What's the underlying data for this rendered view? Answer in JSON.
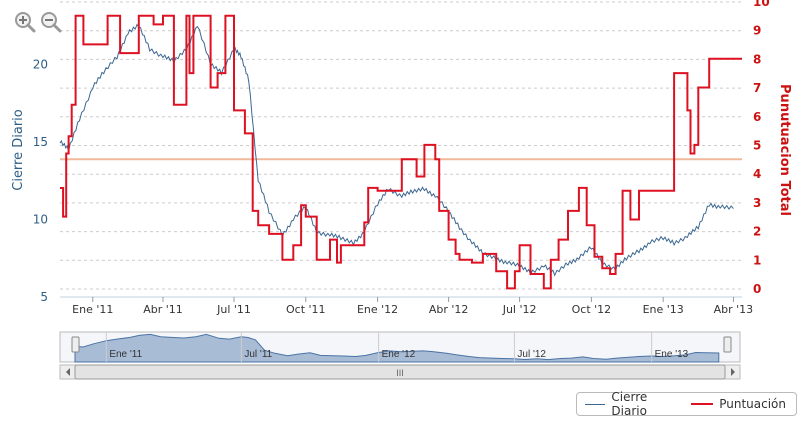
{
  "toolbar": {
    "zoom_in_icon": "zoom-in-icon",
    "zoom_out_icon": "zoom-out-icon"
  },
  "legend": {
    "cierre_label": "Cierre Diario",
    "puntuacion_label": "Puntuación"
  },
  "colors": {
    "cierre": "#3c6791",
    "puntuacion": "#dd1122",
    "reference": "#f0b99a",
    "navigator_fill": "#a9bcd6",
    "grid": "#cccccc"
  },
  "chart_data": {
    "type": "line",
    "title": "",
    "ylabel_left": "Cierre Diario",
    "ylabel_right": "Punutuacion Total",
    "x_ticks": [
      "Ene '11",
      "Abr '11",
      "Jul '11",
      "Oct '11",
      "Ene '12",
      "Abr '12",
      "Jul '12",
      "Oct '12",
      "Ene '13",
      "Abr '13"
    ],
    "x_tick_dates": [
      "2011-01-01",
      "2011-04-01",
      "2011-07-01",
      "2011-10-01",
      "2012-01-01",
      "2012-04-01",
      "2012-07-01",
      "2012-10-01",
      "2013-01-01",
      "2013-04-01"
    ],
    "x_range": [
      "2010-11-20",
      "2013-04-12"
    ],
    "y_left_ticks": [
      "5",
      "10",
      "15",
      "20"
    ],
    "y_left_range": [
      5,
      23.5
    ],
    "y_right_ticks": [
      "0",
      "1",
      "2",
      "3",
      "4",
      "5",
      "6",
      "7",
      "8",
      "9",
      "10"
    ],
    "y_right_range": [
      0,
      10
    ],
    "reference_line": {
      "axis": "right",
      "value": 4.8
    },
    "navigator_ticks": [
      "Ene '11",
      "Jul '11",
      "Ene '12",
      "Jul '12",
      "Ene '13"
    ],
    "navigator_thumb_label": "III",
    "series": [
      {
        "name": "Cierre Diario",
        "axis": "left",
        "x": [
          "2010-11-20",
          "2010-12-01",
          "2010-12-15",
          "2011-01-01",
          "2011-01-15",
          "2011-02-01",
          "2011-02-15",
          "2011-03-01",
          "2011-03-15",
          "2011-04-01",
          "2011-04-15",
          "2011-05-01",
          "2011-05-15",
          "2011-06-01",
          "2011-06-15",
          "2011-07-01",
          "2011-07-10",
          "2011-07-20",
          "2011-08-01",
          "2011-08-15",
          "2011-09-01",
          "2011-09-15",
          "2011-10-01",
          "2011-10-15",
          "2011-11-01",
          "2011-11-15",
          "2011-12-01",
          "2011-12-15",
          "2012-01-01",
          "2012-01-15",
          "2012-02-01",
          "2012-02-15",
          "2012-03-01",
          "2012-03-15",
          "2012-04-01",
          "2012-04-15",
          "2012-05-01",
          "2012-05-15",
          "2012-06-01",
          "2012-06-15",
          "2012-07-01",
          "2012-07-15",
          "2012-08-01",
          "2012-08-15",
          "2012-09-01",
          "2012-09-15",
          "2012-10-01",
          "2012-10-15",
          "2012-11-01",
          "2012-11-15",
          "2012-12-01",
          "2012-12-15",
          "2013-01-01",
          "2013-01-15",
          "2013-02-01",
          "2013-02-15",
          "2013-03-01",
          "2013-03-15",
          "2013-04-01"
        ],
        "values": [
          15,
          14.5,
          16.5,
          18.5,
          19.5,
          20.5,
          22,
          22.5,
          21,
          20.5,
          20.2,
          21,
          22.5,
          20,
          19.5,
          21,
          20.5,
          19,
          12.5,
          10.5,
          9,
          10,
          10.8,
          9.2,
          9,
          8.8,
          8.5,
          9.2,
          11,
          12,
          11.5,
          11.8,
          12,
          11.5,
          10.5,
          9.5,
          8.5,
          7.8,
          7.5,
          7.2,
          7,
          6.6,
          7,
          6.5,
          7.2,
          7.5,
          8.2,
          7.2,
          6.8,
          7.5,
          8,
          8.5,
          8.8,
          8.5,
          8.9,
          9.5,
          11,
          10.8,
          10.7
        ]
      },
      {
        "name": "Puntuación",
        "axis": "right",
        "x": [
          "2010-11-20",
          "2010-11-24",
          "2010-11-28",
          "2010-12-01",
          "2010-12-05",
          "2010-12-10",
          "2010-12-20",
          "2011-01-20",
          "2011-02-05",
          "2011-03-01",
          "2011-03-20",
          "2011-04-01",
          "2011-04-15",
          "2011-05-01",
          "2011-05-05",
          "2011-05-10",
          "2011-05-20",
          "2011-06-01",
          "2011-06-10",
          "2011-06-20",
          "2011-07-01",
          "2011-07-15",
          "2011-07-25",
          "2011-08-01",
          "2011-08-15",
          "2011-09-01",
          "2011-09-15",
          "2011-09-25",
          "2011-10-01",
          "2011-10-15",
          "2011-11-01",
          "2011-11-10",
          "2011-11-15",
          "2011-12-01",
          "2011-12-15",
          "2011-12-20",
          "2012-01-01",
          "2012-01-15",
          "2012-02-01",
          "2012-02-20",
          "2012-03-01",
          "2012-03-15",
          "2012-03-20",
          "2012-04-01",
          "2012-04-10",
          "2012-04-15",
          "2012-05-01",
          "2012-05-15",
          "2012-06-01",
          "2012-06-15",
          "2012-06-25",
          "2012-07-01",
          "2012-07-15",
          "2012-08-01",
          "2012-08-10",
          "2012-08-20",
          "2012-09-01",
          "2012-09-15",
          "2012-09-25",
          "2012-10-05",
          "2012-10-15",
          "2012-10-25",
          "2012-11-01",
          "2012-11-10",
          "2012-11-20",
          "2012-12-01",
          "2012-12-15",
          "2013-01-01",
          "2013-01-15",
          "2013-02-01",
          "2013-02-05",
          "2013-02-10",
          "2013-02-15",
          "2013-03-01",
          "2013-03-10",
          "2013-04-01"
        ],
        "values": [
          3.8,
          2.8,
          5,
          5.6,
          6.7,
          9.8,
          8.8,
          9.8,
          8.5,
          9.8,
          9.5,
          9.8,
          6.7,
          9.8,
          7.8,
          9.8,
          9.8,
          7.3,
          7.8,
          9.8,
          6.5,
          5.7,
          3,
          2.5,
          2.2,
          1.3,
          1.8,
          3.2,
          2.8,
          1.3,
          2,
          1.2,
          1.8,
          1.8,
          2.6,
          3.8,
          3.7,
          3.7,
          4.8,
          4.2,
          5.3,
          4.8,
          3,
          2,
          1.5,
          1.3,
          1.2,
          1.5,
          0.9,
          0.3,
          0.9,
          1.8,
          0.8,
          0.3,
          1.3,
          2,
          3,
          3.8,
          2.5,
          1.4,
          1,
          0.8,
          1.5,
          3.7,
          2.7,
          3.7,
          3.7,
          3.7,
          7.8,
          6.5,
          5,
          5.3,
          7.3,
          8.3,
          8.3,
          8.3
        ]
      }
    ]
  }
}
